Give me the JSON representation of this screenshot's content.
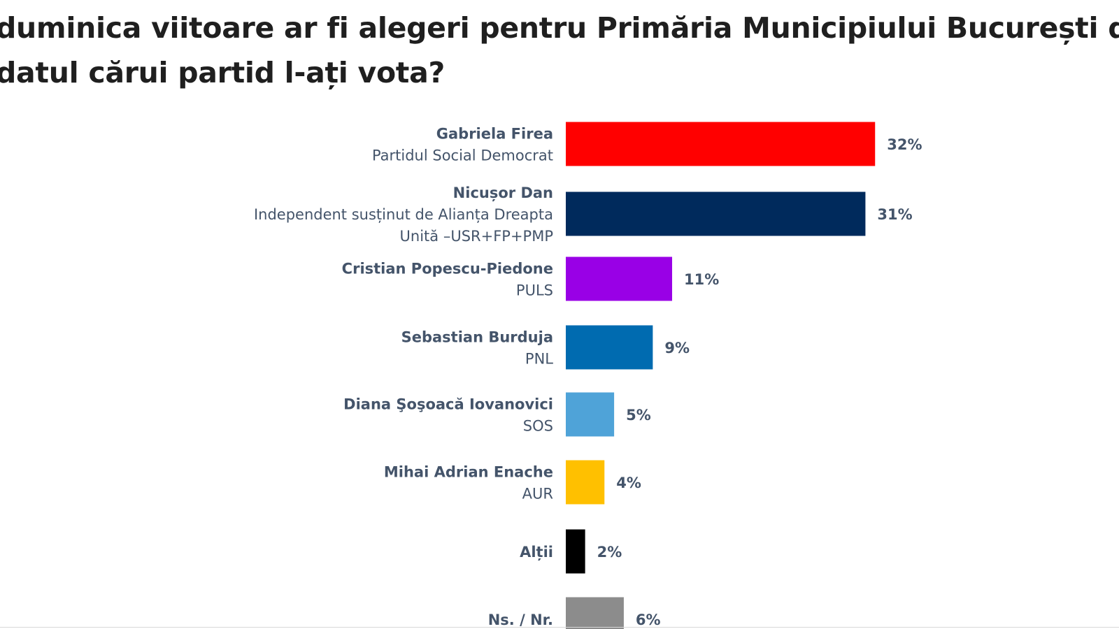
{
  "title_lines": [
    "duminica viitoare ar fi alegeri pentru Primăria Municipiului București dvs",
    "datul cărui partid l-ați vota?"
  ],
  "chart_data": {
    "type": "bar",
    "orientation": "horizontal",
    "value_suffix": "%",
    "xlim": [
      0,
      32
    ],
    "grid": false,
    "legend": "none",
    "categories": [
      {
        "name": "Gabriela Firea",
        "sub": [
          "Partidul Social Democrat"
        ],
        "value": 32,
        "label": "32%",
        "color": "#ff0000"
      },
      {
        "name": "Nicușor Dan",
        "sub": [
          "Independent susținut de Alianța Dreapta",
          "Unită –USR+FP+PMP"
        ],
        "value": 31,
        "label": "31%",
        "color": "#002a5c"
      },
      {
        "name": "Cristian Popescu-Piedone",
        "sub": [
          "PULS"
        ],
        "value": 11,
        "label": "11%",
        "color": "#9900e6"
      },
      {
        "name": "Sebastian Burduja",
        "sub": [
          "PNL"
        ],
        "value": 9,
        "label": "9%",
        "color": "#006bb0"
      },
      {
        "name": "Diana Şoşoacă Iovanovici",
        "sub": [
          "SOS"
        ],
        "value": 5,
        "label": "5%",
        "color": "#4fa3d8"
      },
      {
        "name": "Mihai Adrian Enache",
        "sub": [
          "AUR"
        ],
        "value": 4,
        "label": "4%",
        "color": "#ffc000"
      },
      {
        "name": "Alții",
        "sub": [],
        "value": 2,
        "label": "2%",
        "color": "#000000"
      },
      {
        "name": "Ns. / Nr.",
        "sub": [],
        "value": 6,
        "label": "6%",
        "color": "#8c8c8c"
      }
    ]
  }
}
